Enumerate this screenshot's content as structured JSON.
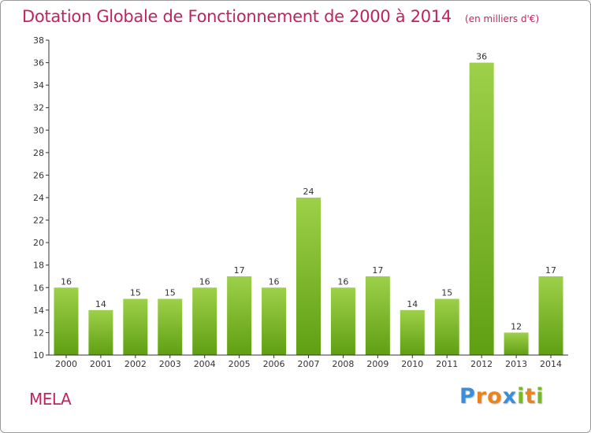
{
  "chart_data": {
    "type": "bar",
    "title": "Dotation Globale de Fonctionnement de 2000 à 2014",
    "unit_label": "(en milliers d'€)",
    "categories": [
      "2000",
      "2001",
      "2002",
      "2003",
      "2004",
      "2005",
      "2006",
      "2007",
      "2008",
      "2009",
      "2010",
      "2011",
      "2012",
      "2013",
      "2014"
    ],
    "values": [
      16,
      14,
      15,
      15,
      16,
      17,
      16,
      24,
      16,
      17,
      14,
      15,
      36,
      12,
      17
    ],
    "ylim": [
      10,
      38
    ],
    "yticks": [
      10,
      12,
      14,
      16,
      18,
      20,
      22,
      24,
      26,
      28,
      30,
      32,
      34,
      36,
      38
    ],
    "xlabel": "",
    "ylabel": "",
    "grid": false
  },
  "footer": {
    "commune": "MELA",
    "logo_letters": [
      "P",
      "r",
      "o",
      "x",
      "i",
      "t",
      "i"
    ]
  },
  "colors": {
    "title": "#c0245e",
    "bar_top": "#9ed04a",
    "bar_bottom": "#5f9f12",
    "axis": "#333333",
    "logo": [
      "#3b8fd6",
      "#e8841f",
      "#e8841f",
      "#3b8fd6",
      "#79b82b",
      "#e8841f",
      "#79b82b"
    ]
  }
}
